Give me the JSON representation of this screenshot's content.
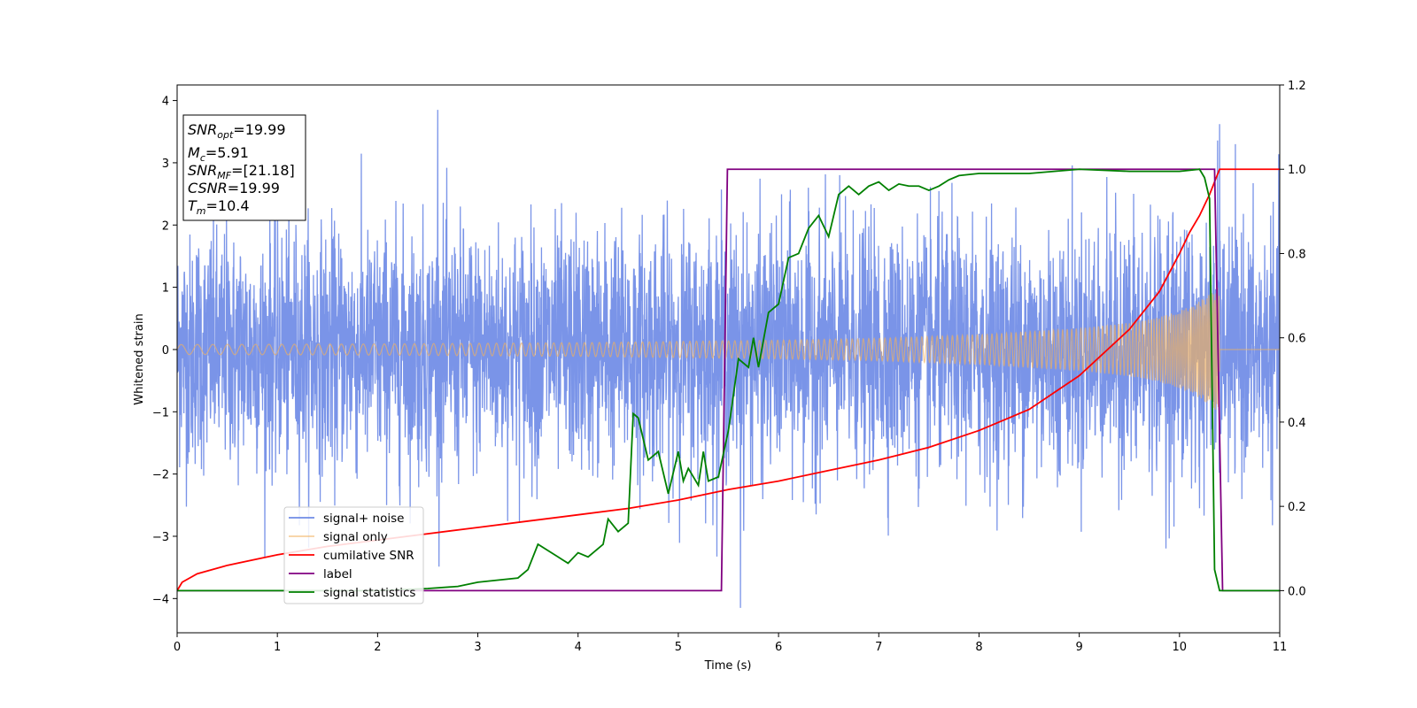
{
  "chart_data": {
    "type": "line",
    "xlabel": "Time (s)",
    "ylabel": "Whitened strain",
    "xlim": [
      0,
      11
    ],
    "ylim": [
      -4.55,
      4.25
    ],
    "y2lim": [
      -0.1,
      1.2
    ],
    "x_ticks": [
      "0",
      "1",
      "2",
      "3",
      "4",
      "5",
      "6",
      "7",
      "8",
      "9",
      "10",
      "11"
    ],
    "y_ticks": [
      "4",
      "3",
      "2",
      "1",
      "0",
      "−1",
      "−2",
      "−3",
      "−4"
    ],
    "y2_ticks": [
      "1.2",
      "1.0",
      "0.8",
      "0.6",
      "0.4",
      "0.2",
      "0.0"
    ],
    "grid": false,
    "legend_position": "lower-left",
    "annotation": {
      "snr_opt": "=19.99",
      "mc": "=5.91",
      "snr_mf": "=[21.18]",
      "csnr": "=19.99",
      "tm": "=10.4"
    },
    "series": [
      {
        "name": "signal+ noise",
        "color": "#6f8be6",
        "axis": "left",
        "description": "whitened noise plus signal, std approx 0.95, visible peaks to about 3.9 and -4.2",
        "notable_points": [
          [
            2.6,
            3.85
          ],
          [
            5.62,
            -4.15
          ],
          [
            10.4,
            3.62
          ]
        ]
      },
      {
        "name": "signal only",
        "color": "#f2b05c",
        "axis": "left",
        "description": "chirp signal, amplitude grows from about 0.08 to about 1.0 before ending at t=10.4",
        "envelope": {
          "x": [
            0,
            1,
            2,
            3,
            4,
            5,
            6,
            7,
            8,
            9,
            9.5,
            9.8,
            10.0,
            10.2,
            10.3,
            10.4
          ],
          "y": [
            0.08,
            0.085,
            0.09,
            0.1,
            0.11,
            0.13,
            0.15,
            0.18,
            0.24,
            0.34,
            0.43,
            0.52,
            0.62,
            0.78,
            0.9,
            1.02
          ]
        },
        "end_time": 10.4
      },
      {
        "name": "cumilative SNR",
        "color": "#ff0000",
        "axis": "right",
        "x": [
          0,
          0.05,
          0.2,
          0.5,
          1,
          1.5,
          2,
          2.5,
          3,
          3.5,
          4,
          4.5,
          5,
          5.5,
          6,
          6.5,
          7,
          7.5,
          8,
          8.5,
          9,
          9.5,
          9.8,
          10,
          10.1,
          10.2,
          10.3,
          10.4,
          11
        ],
        "y": [
          0.0,
          0.02,
          0.04,
          0.06,
          0.085,
          0.105,
          0.12,
          0.135,
          0.15,
          0.165,
          0.18,
          0.195,
          0.215,
          0.24,
          0.26,
          0.285,
          0.31,
          0.34,
          0.38,
          0.43,
          0.51,
          0.62,
          0.71,
          0.8,
          0.85,
          0.89,
          0.94,
          1.0,
          1.0
        ]
      },
      {
        "name": "label",
        "color": "#800080",
        "axis": "right",
        "x": [
          0,
          5.43,
          5.49,
          10.35,
          10.43,
          11
        ],
        "y": [
          0,
          0,
          1,
          1,
          0,
          0
        ]
      },
      {
        "name": "signal statistics",
        "color": "#008000",
        "axis": "right",
        "x": [
          0,
          2,
          2.5,
          2.8,
          3.0,
          3.2,
          3.4,
          3.5,
          3.6,
          3.8,
          3.9,
          4.0,
          4.1,
          4.2,
          4.25,
          4.3,
          4.4,
          4.45,
          4.5,
          4.55,
          4.6,
          4.7,
          4.8,
          4.9,
          5.0,
          5.05,
          5.1,
          5.2,
          5.25,
          5.3,
          5.4,
          5.5,
          5.6,
          5.7,
          5.75,
          5.8,
          5.9,
          6.0,
          6.1,
          6.2,
          6.3,
          6.4,
          6.5,
          6.6,
          6.7,
          6.8,
          6.9,
          7.0,
          7.1,
          7.2,
          7.3,
          7.4,
          7.5,
          7.6,
          7.7,
          7.8,
          8.0,
          8.5,
          9.0,
          9.5,
          10.0,
          10.2,
          10.25,
          10.3,
          10.35,
          10.4,
          10.5,
          11
        ],
        "y": [
          0,
          0.0,
          0.005,
          0.01,
          0.02,
          0.025,
          0.03,
          0.05,
          0.11,
          0.08,
          0.065,
          0.09,
          0.08,
          0.1,
          0.11,
          0.17,
          0.14,
          0.15,
          0.16,
          0.42,
          0.41,
          0.31,
          0.33,
          0.23,
          0.33,
          0.26,
          0.29,
          0.25,
          0.33,
          0.26,
          0.27,
          0.38,
          0.55,
          0.53,
          0.6,
          0.53,
          0.66,
          0.68,
          0.79,
          0.8,
          0.86,
          0.89,
          0.84,
          0.94,
          0.96,
          0.94,
          0.96,
          0.97,
          0.95,
          0.965,
          0.96,
          0.96,
          0.95,
          0.96,
          0.975,
          0.985,
          0.99,
          0.99,
          1.0,
          0.995,
          0.995,
          1.0,
          0.98,
          0.93,
          0.05,
          0.0,
          0.0,
          0.0
        ]
      }
    ]
  }
}
